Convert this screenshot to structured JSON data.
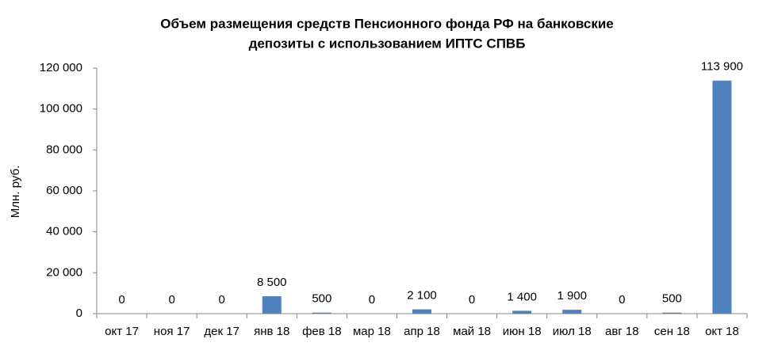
{
  "chart_data": {
    "type": "bar",
    "title": [
      "Объем размещения средств Пенсионного фонда РФ  на банковские",
      "депозиты с использованием ИПТС СПВБ"
    ],
    "y_label": "Млн. руб.",
    "categories": [
      "окт 17",
      "ноя 17",
      "дек 17",
      "янв 18",
      "фев 18",
      "мар 18",
      "апр 18",
      "май 18",
      "июн 18",
      "июл 18",
      "авг 18",
      "сен 18",
      "окт 18"
    ],
    "values": [
      0,
      0,
      0,
      8500,
      500,
      0,
      2100,
      0,
      1400,
      1900,
      0,
      500,
      113900
    ],
    "value_labels": [
      "0",
      "0",
      "0",
      "8 500",
      "500",
      "0",
      "2 100",
      "0",
      "1 400",
      "1 900",
      "0",
      "500",
      "113 900"
    ],
    "color": "#4f81bd",
    "ylim": [
      0,
      120000
    ],
    "yticks": [
      0,
      {
        "value": 20000,
        "label": "20 000"
      },
      {
        "value": 40000,
        "label": "40 000"
      },
      {
        "value": 60000,
        "label": "60 000"
      },
      {
        "value": 80000,
        "label": "80 000"
      },
      {
        "value": 100000,
        "label": "100 000"
      },
      {
        "value": 120000,
        "label": "120 000"
      }
    ],
    "grid": false
  }
}
